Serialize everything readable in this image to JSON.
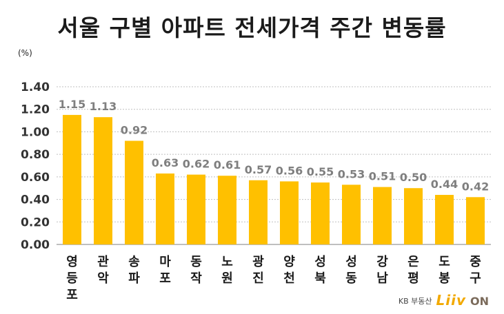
{
  "header": {
    "title": "서울 구별 아파트 전세가격 주간 변동률",
    "unit": "(%)"
  },
  "brand": {
    "kb_text": "KB 부동산",
    "liiv_text": "Liiv",
    "on_text": "ON"
  },
  "colors": {
    "bar": "#ffc000",
    "grid": "#bfbfbf",
    "value_label": "#7f7f7f"
  },
  "chart_data": {
    "type": "bar",
    "categories": [
      "영등포",
      "관악",
      "송파",
      "마포",
      "동작",
      "노원",
      "광진",
      "양천",
      "성북",
      "성동",
      "강남",
      "은평",
      "도봉",
      "중구"
    ],
    "values": [
      1.15,
      1.13,
      0.92,
      0.63,
      0.62,
      0.61,
      0.57,
      0.56,
      0.55,
      0.53,
      0.51,
      0.5,
      0.44,
      0.42
    ],
    "value_labels": [
      "1.15",
      "1.13",
      "0.92",
      "0.63",
      "0.62",
      "0.61",
      "0.57",
      "0.56",
      "0.55",
      "0.53",
      "0.51",
      "0.50",
      "0.44",
      "0.42"
    ],
    "yticks": [
      "0.00",
      "0.20",
      "0.40",
      "0.60",
      "0.80",
      "1.00",
      "1.20",
      "1.40"
    ],
    "ylim": [
      0,
      1.4
    ],
    "grid": true
  }
}
